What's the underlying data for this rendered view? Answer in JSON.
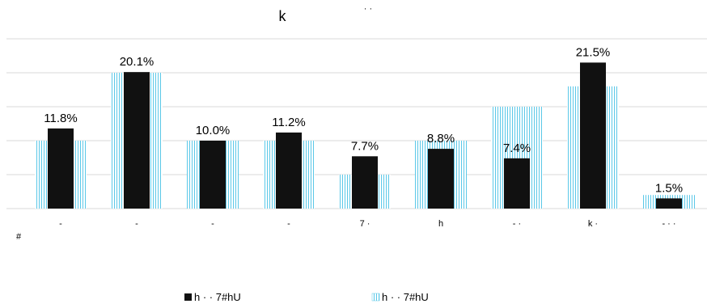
{
  "chart_data": {
    "type": "bar",
    "title": "k",
    "title_fragment": "·   ·",
    "categories": [
      "-",
      "-",
      "-",
      "-",
      "7   ·",
      "h",
      "-   ·",
      "k   ·",
      "-   ·   ·"
    ],
    "x_footnote": "#",
    "ylim": [
      0,
      25
    ],
    "grid": true,
    "legend_position": "bottom",
    "series": [
      {
        "name": "h   ·   ·   7#hU",
        "color": "#111111",
        "values": [
          11.8,
          20.1,
          10.0,
          11.2,
          7.7,
          8.8,
          7.4,
          21.5,
          1.5
        ],
        "data_labels": [
          "11.8%",
          "20.1%",
          "10.0%",
          "11.2%",
          "7.7%",
          "8.8%",
          "7.4%",
          "21.5%",
          "1.5%"
        ]
      },
      {
        "name": "h   ·   ·   7#hU",
        "color": "#5bc8e8",
        "values": [
          10.0,
          20.0,
          10.0,
          10.0,
          5.0,
          10.0,
          15.0,
          18.0,
          2.0
        ],
        "data_labels": []
      }
    ]
  }
}
